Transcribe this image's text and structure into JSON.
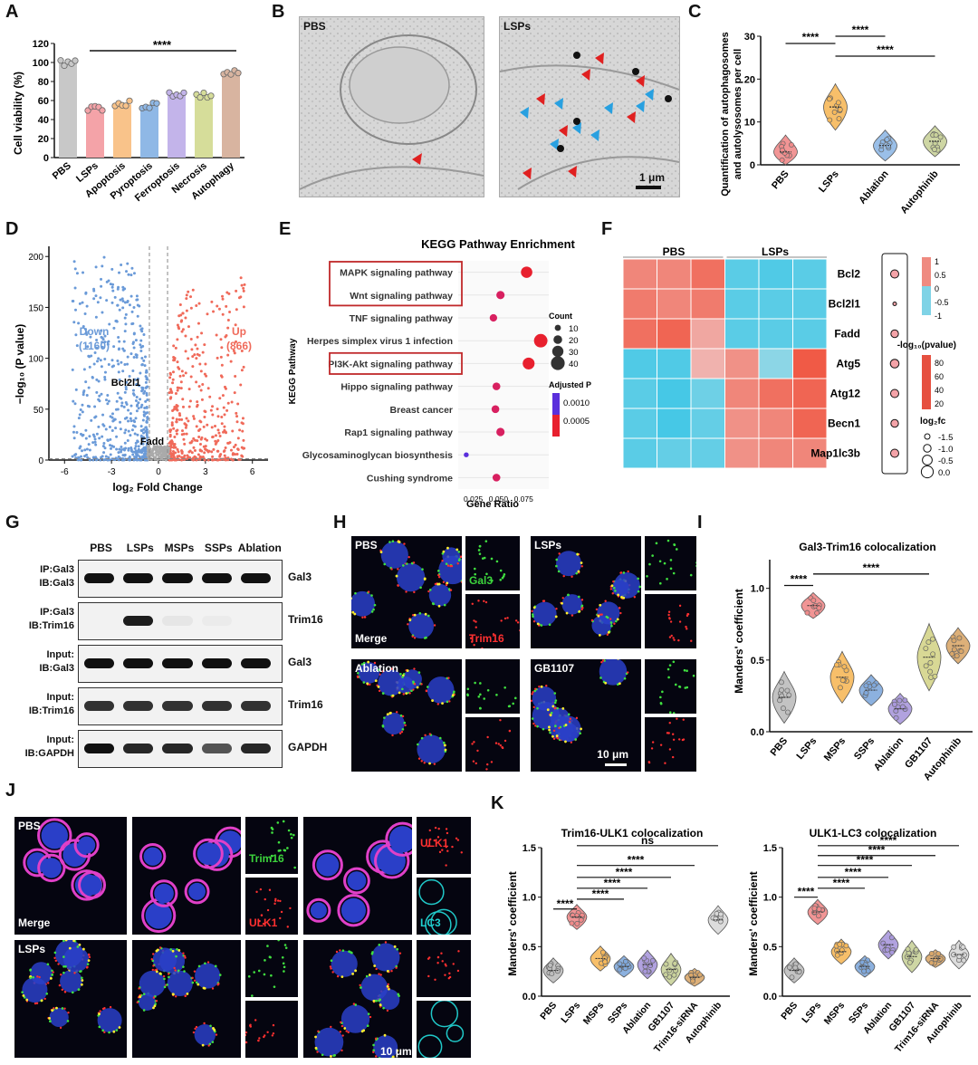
{
  "panels": {
    "A": "A",
    "B": "B",
    "C": "C",
    "D": "D",
    "E": "E",
    "F": "F",
    "G": "G",
    "H": "H",
    "I": "I",
    "J": "J",
    "K": "K"
  },
  "panelA": {
    "ylabel": "Cell viability (%)",
    "significance": "****",
    "chart_data": {
      "type": "bar",
      "categories": [
        "PBS",
        "LSPs",
        "Apoptosis",
        "Pyroptosis",
        "Ferroptosis",
        "Necrosis",
        "Autophagy"
      ],
      "values": [
        100,
        53,
        56,
        55,
        67,
        65,
        88
      ],
      "colors": [
        "#c8c8c8",
        "#f4a3a8",
        "#f9c38a",
        "#8fb8e6",
        "#c3b4ea",
        "#d6dd9a",
        "#d8b4a0"
      ],
      "ylabel": "Cell viability (%)",
      "ylim": [
        0,
        120
      ],
      "yticks": [
        0,
        20,
        40,
        60,
        80,
        100,
        120
      ]
    }
  },
  "panelB": {
    "left_label": "PBS",
    "right_label": "LSPs",
    "scale": "1 μm"
  },
  "panelC": {
    "ylabel_line1": "Quantification of autophagosomes",
    "ylabel_line2": "and autolysosomes per cell",
    "sig": [
      "****",
      "****",
      "****"
    ],
    "chart_data": {
      "type": "violin",
      "categories": [
        "PBS",
        "LSPs",
        "Ablation",
        "Autophinib"
      ],
      "means": [
        3,
        13.5,
        4.5,
        5.5
      ],
      "colors": [
        "#f08a8a",
        "#f6b85a",
        "#8fb8e6",
        "#c9d29a"
      ],
      "ylim": [
        0,
        30
      ],
      "yticks": [
        0,
        10,
        20,
        30
      ]
    }
  },
  "panelD": {
    "ylabel": "−log₁₀ (P value)",
    "xlabel": "log₂ Fold Change",
    "down": "Down",
    "down_n": "(1160)",
    "up": "Up",
    "up_n": "(866)",
    "gene1": "Bcl2l1",
    "gene2": "Fadd",
    "chart_data": {
      "type": "scatter",
      "xlim": [
        -7,
        7
      ],
      "ylim": [
        0,
        210
      ],
      "xticks": [
        -6,
        -3,
        0,
        3,
        6
      ],
      "yticks": [
        0,
        50,
        100,
        150,
        200
      ]
    }
  },
  "panelE": {
    "title": "KEGG Pathway Enrichment",
    "ylabel": "KEGG Pathway",
    "xlabel": "Gene Ratio",
    "count_title": "Count",
    "padj_title": "Adjusted P",
    "padj_ticks": [
      "0.0010",
      "0.0005"
    ],
    "chart_data": {
      "type": "scatter",
      "pathways": [
        "MAPK signaling pathway",
        "Wnt signaling pathway",
        "TNF signaling pathway",
        "Herpes simplex virus 1 infection",
        "PI3K-Akt signaling pathway",
        "Hippo signaling pathway",
        "Breast cancer",
        "Rap1 signaling pathway",
        "Glycosaminoglycan biosynthesis",
        "Cushing syndrome"
      ],
      "gene_ratio": [
        0.078,
        0.052,
        0.045,
        0.092,
        0.08,
        0.048,
        0.047,
        0.052,
        0.018,
        0.048
      ],
      "count": [
        30,
        18,
        15,
        38,
        32,
        16,
        16,
        18,
        5,
        16
      ],
      "highlighted": [
        0,
        1,
        4
      ],
      "xticks": [
        "0.025",
        "0.050",
        "0.075"
      ],
      "count_ticks": [
        "10",
        "20",
        "30",
        "40"
      ]
    }
  },
  "panelF": {
    "groups": [
      "PBS",
      "LSPs"
    ],
    "genes": [
      "Bcl2",
      "Bcl2l1",
      "Fadd",
      "Atg5",
      "Atg12",
      "Becn1",
      "Map1lc3b"
    ],
    "legend_ticks": [
      "1",
      "0.5",
      "0",
      "-0.5",
      "-1"
    ],
    "pval_title": "-log₁₀(pvalue)",
    "pval_ticks": [
      "80",
      "60",
      "40",
      "20"
    ],
    "fc_title": "log₂fc",
    "fc_ticks": [
      "-1.5",
      "-1.0",
      "-0.5",
      "0.0"
    ],
    "chart_data": {
      "type": "heatmap",
      "rows": [
        "Bcl2",
        "Bcl2l1",
        "Fadd",
        "Atg5",
        "Atg12",
        "Becn1",
        "Map1lc3b"
      ],
      "values": [
        [
          0.6,
          0.6,
          0.8,
          -0.8,
          -0.9,
          -0.8
        ],
        [
          0.7,
          0.6,
          0.7,
          -0.8,
          -0.8,
          -0.8
        ],
        [
          0.8,
          0.9,
          0.3,
          -0.8,
          -0.8,
          -0.8
        ],
        [
          -0.9,
          -0.9,
          0.2,
          0.5,
          -0.3,
          1.0
        ],
        [
          -0.8,
          -1.0,
          -0.6,
          0.6,
          0.8,
          0.9
        ],
        [
          -0.8,
          -1.0,
          -0.7,
          0.5,
          0.6,
          0.9
        ],
        [
          -0.8,
          -0.7,
          -0.7,
          0.5,
          0.6,
          0.6
        ]
      ]
    }
  },
  "panelG": {
    "lanes": [
      "PBS",
      "LSPs",
      "MSPs",
      "SSPs",
      "Ablation"
    ],
    "rows": [
      {
        "left1": "IP:Gal3",
        "left2": "IB:Gal3",
        "right": "Gal3"
      },
      {
        "left1": "IP:Gal3",
        "left2": "IB:Trim16",
        "right": "Trim16"
      },
      {
        "left1": "Input:",
        "left2": "IB:Gal3",
        "right": "Gal3"
      },
      {
        "left1": "Input:",
        "left2": "IB:Trim16",
        "right": "Trim16"
      },
      {
        "left1": "Input:",
        "left2": "IB:GAPDH",
        "right": "GAPDH"
      }
    ]
  },
  "panelH": {
    "labels": [
      "PBS",
      "LSPs",
      "Ablation",
      "GB1107"
    ],
    "merge": "Merge",
    "gal3": "Gal3",
    "trim16": "Trim16",
    "scale": "10 μm"
  },
  "panelI": {
    "title": "Gal3-Trim16 colocalization",
    "ylabel": "Manders' coefficient",
    "sig": [
      "****",
      "****"
    ],
    "chart_data": {
      "type": "violin",
      "categories": [
        "PBS",
        "LSPs",
        "MSPs",
        "SSPs",
        "Ablation",
        "GB1107",
        "Autophinib"
      ],
      "means": [
        0.24,
        0.88,
        0.38,
        0.29,
        0.16,
        0.52,
        0.6
      ],
      "colors": [
        "#bdbdbd",
        "#f08a8a",
        "#f6b85a",
        "#7fa8dc",
        "#a998dc",
        "#d4d48a",
        "#d9a76a"
      ],
      "ylim": [
        0,
        1.2
      ],
      "yticks": [
        0.0,
        0.5,
        1.0
      ]
    }
  },
  "panelJ": {
    "pbs": "PBS",
    "lsps": "LSPs",
    "merge": "Merge",
    "trim16": "Trim16",
    "ulk1": "ULK1",
    "lc3": "LC3",
    "scale": "10 μm"
  },
  "panelK1": {
    "title": "Trim16-ULK1 colocalization",
    "ylabel": "Manders' coefficient",
    "sig": [
      "ns",
      "****",
      "****",
      "****",
      "****",
      "****"
    ],
    "chart_data": {
      "type": "violin",
      "categories": [
        "PBS",
        "LSPs",
        "MSPs",
        "SSPs",
        "Ablation",
        "GB1107",
        "Trim16-siRNA",
        "Autophinib"
      ],
      "means": [
        0.26,
        0.8,
        0.38,
        0.3,
        0.32,
        0.27,
        0.19,
        0.77
      ],
      "colors": [
        "#bdbdbd",
        "#f08a8a",
        "#f6b85a",
        "#7fa8dc",
        "#a998dc",
        "#c9d29a",
        "#d9a76a",
        "#d8d8d8"
      ],
      "ylim": [
        0,
        1.5
      ],
      "yticks": [
        0.0,
        0.5,
        1.0,
        1.5
      ]
    }
  },
  "panelK2": {
    "title": "ULK1-LC3 colocalization",
    "ylabel": "Manders' coefficient",
    "sig": [
      "****",
      "****",
      "****",
      "****",
      "****",
      "****"
    ],
    "chart_data": {
      "type": "violin",
      "categories": [
        "PBS",
        "LSPs",
        "MSPs",
        "SSPs",
        "Ablation",
        "GB1107",
        "Trim16-siRNA",
        "Autophinib"
      ],
      "means": [
        0.26,
        0.85,
        0.45,
        0.3,
        0.52,
        0.4,
        0.38,
        0.42
      ],
      "colors": [
        "#bdbdbd",
        "#f08a8a",
        "#f6b85a",
        "#7fa8dc",
        "#a998dc",
        "#c9d29a",
        "#d9a76a",
        "#d8d8d8"
      ],
      "ylim": [
        0,
        1.5
      ],
      "yticks": [
        0.0,
        0.5,
        1.0,
        1.5
      ]
    }
  }
}
